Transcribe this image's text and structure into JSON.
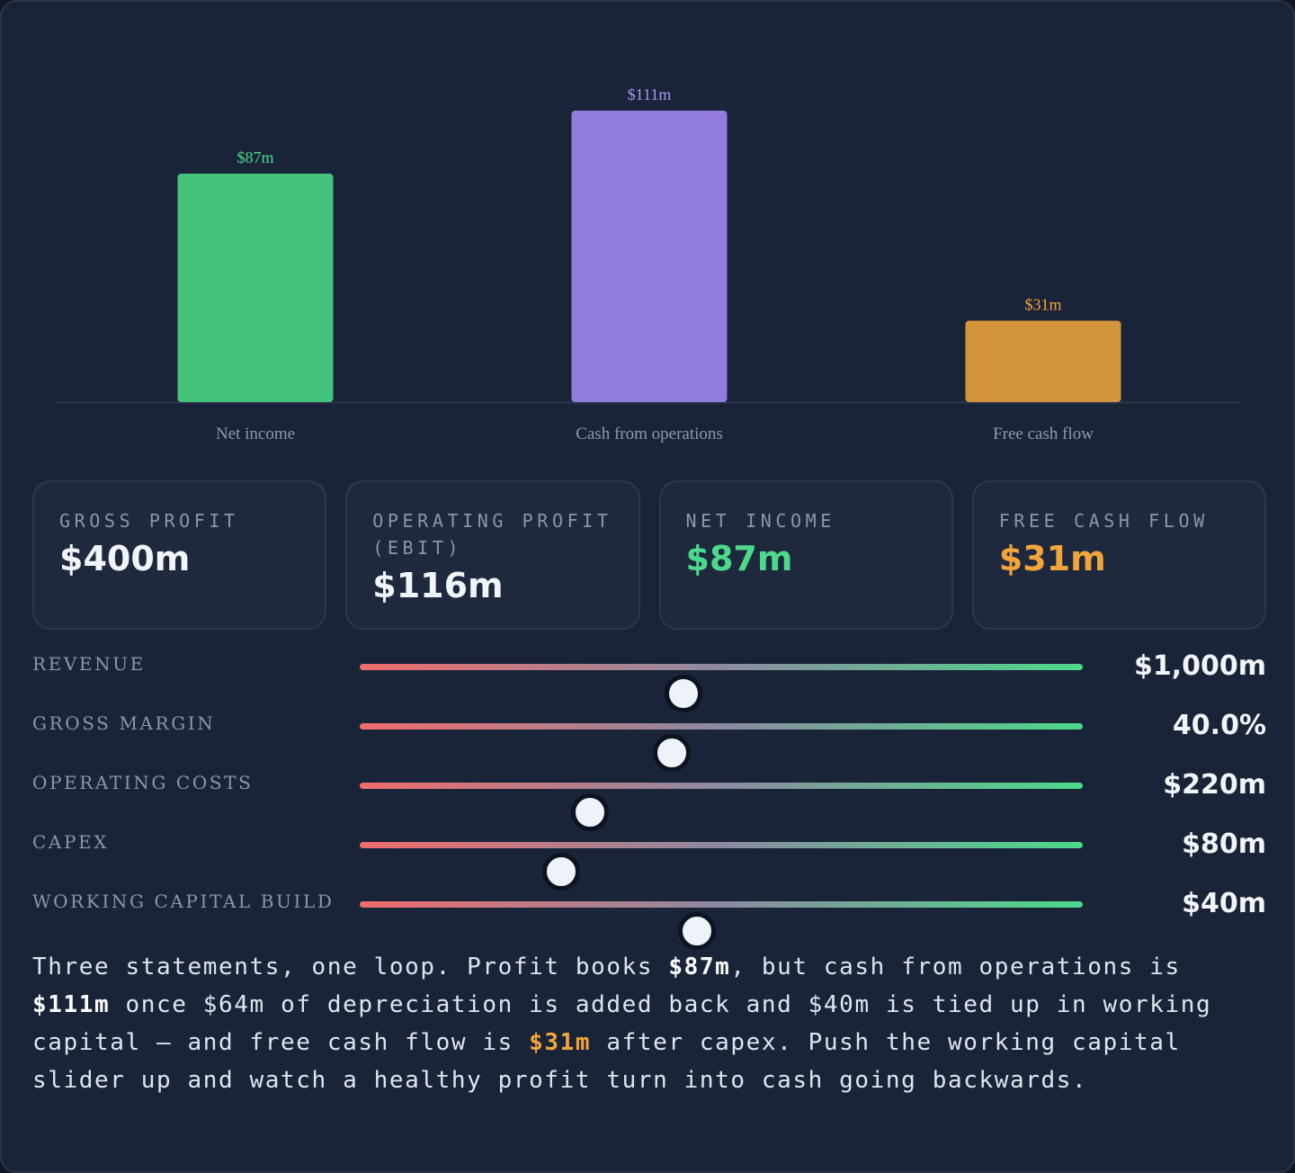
{
  "chart_data": {
    "type": "bar",
    "categories": [
      "Net income",
      "Cash from operations",
      "Free cash flow"
    ],
    "values": [
      87,
      111,
      31
    ],
    "value_labels": [
      "$87m",
      "$111m",
      "$31m"
    ],
    "colors": [
      "#43c47a",
      "#927ddf",
      "#d3943b"
    ],
    "label_colors": [
      "#4cd98a",
      "#a998f0",
      "#f2a53a"
    ],
    "ylim": [
      0,
      111
    ],
    "grid": false
  },
  "cards": [
    {
      "label": "Gross profit",
      "value": "$400m",
      "color": "#f1f4f9"
    },
    {
      "label": "Operating profit (EBIT)",
      "value": "$116m",
      "color": "#f1f4f9"
    },
    {
      "label": "Net income",
      "value": "$87m",
      "color": "#4cd98a"
    },
    {
      "label": "Free cash flow",
      "value": "$31m",
      "color": "#f2a53a"
    }
  ],
  "sliders": [
    {
      "label": "Revenue",
      "value": "$1,000m",
      "position": 0.448
    },
    {
      "label": "Gross margin",
      "value": "40.0%",
      "position": 0.432
    },
    {
      "label": "Operating costs",
      "value": "$220m",
      "position": 0.318
    },
    {
      "label": "Capex",
      "value": "$80m",
      "position": 0.278
    },
    {
      "label": "Working capital build",
      "value": "$40m",
      "position": 0.467
    }
  ],
  "summary": {
    "part1": "Three statements, one loop. Profit books ",
    "net_income": "$87m",
    "part2": ", but cash from operations is ",
    "cfo": "$111m",
    "part3": " once $64m of depreciation is added back and $40m is tied up in working capital — and free cash flow is ",
    "fcf": "$31m",
    "part4": " after capex. Push the working capital slider up and watch a healthy profit turn into cash going backwards."
  }
}
